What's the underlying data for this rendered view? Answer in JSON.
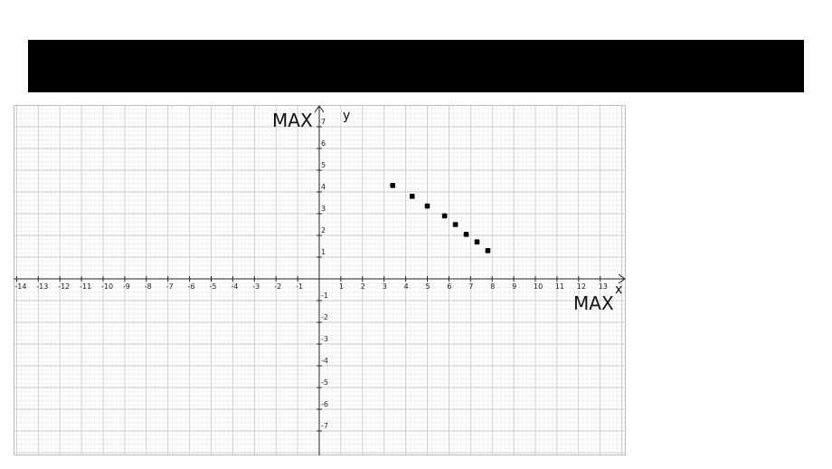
{
  "slide": {
    "title_bar_color": "#000000"
  },
  "chart_data": {
    "type": "scatter",
    "title": "",
    "xlabel": "x",
    "ylabel": "y",
    "x_max_label": "MAX",
    "y_max_label": "MAX",
    "xlim": [
      -14,
      14
    ],
    "ylim": [
      -8,
      8
    ],
    "grid": true,
    "x_ticks": [
      -14,
      -13,
      -12,
      -11,
      -10,
      -9,
      -8,
      -7,
      -6,
      -5,
      -4,
      -3,
      -2,
      -1,
      1,
      2,
      3,
      4,
      5,
      6,
      7,
      8,
      9,
      10,
      11,
      12,
      13
    ],
    "y_ticks": [
      -7,
      -6,
      -5,
      -4,
      -3,
      -2,
      -1,
      1,
      2,
      3,
      4,
      5,
      6,
      7
    ],
    "points": [
      {
        "x": 3.4,
        "y": 4.3
      },
      {
        "x": 4.3,
        "y": 3.8
      },
      {
        "x": 5.0,
        "y": 3.35
      },
      {
        "x": 5.8,
        "y": 2.9
      },
      {
        "x": 6.3,
        "y": 2.5
      },
      {
        "x": 6.8,
        "y": 2.05
      },
      {
        "x": 7.3,
        "y": 1.7
      },
      {
        "x": 7.8,
        "y": 1.3
      }
    ],
    "point_color": "#000000"
  }
}
